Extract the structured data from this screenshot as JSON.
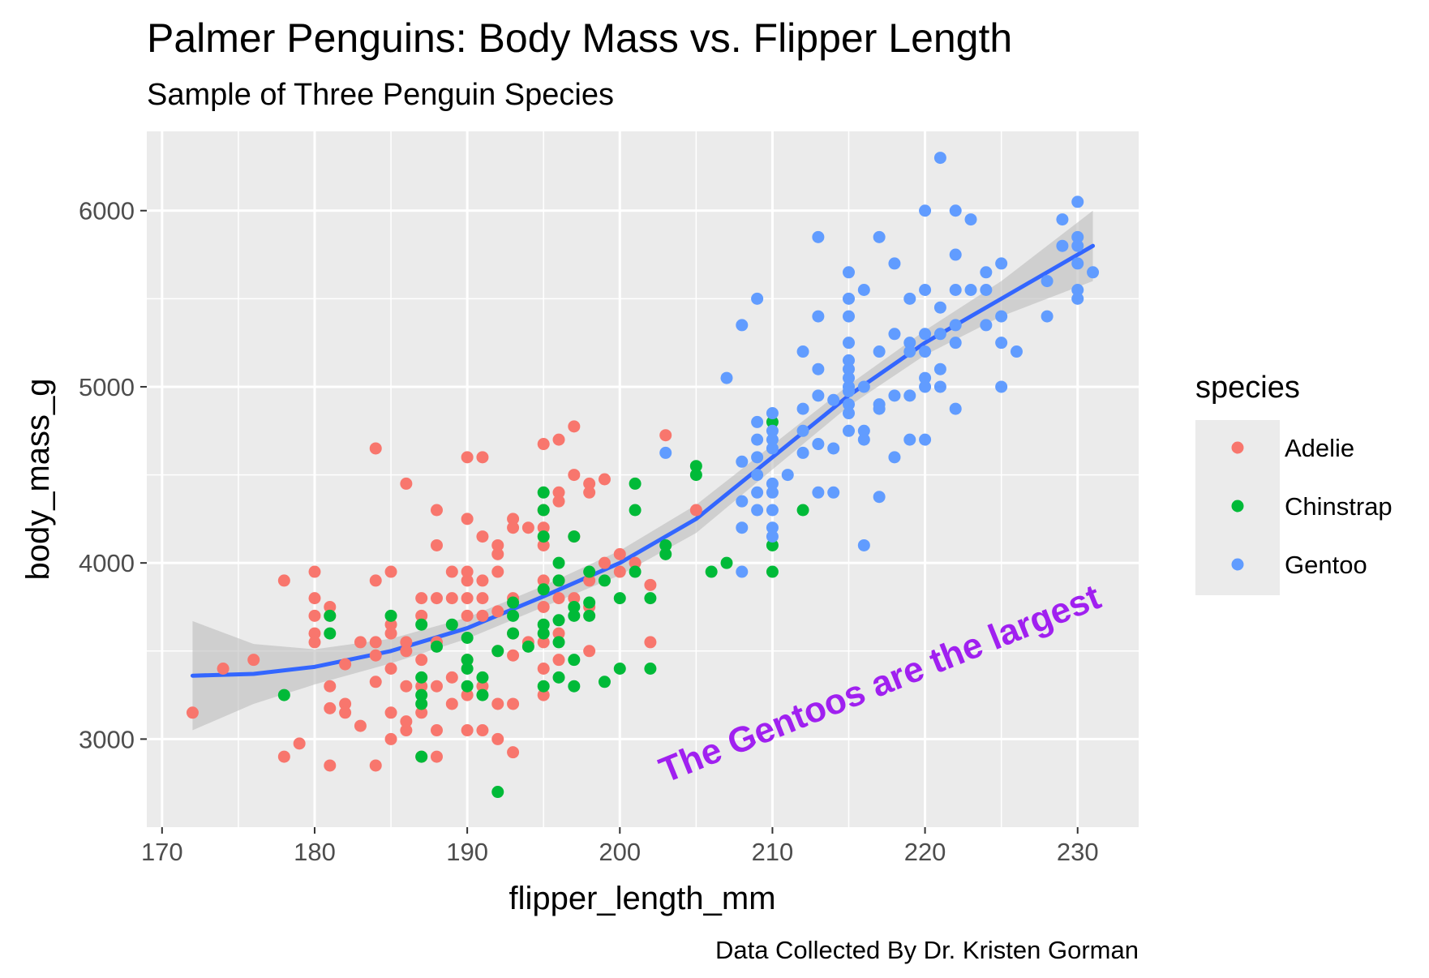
{
  "chart_data": {
    "type": "scatter",
    "title": "Palmer Penguins: Body Mass vs. Flipper Length",
    "subtitle": "Sample of Three Penguin Species",
    "xlabel": "flipper_length_mm",
    "ylabel": "body_mass_g",
    "caption": "Data Collected By Dr. Kristen Gorman",
    "annotation": {
      "text": "The Gentoos are the largest",
      "x": 203,
      "y": 2750,
      "angle_deg": -22,
      "color": "#a020f0"
    },
    "xlim": [
      169,
      234
    ],
    "ylim": [
      2500,
      6450
    ],
    "x_ticks": [
      170,
      180,
      190,
      200,
      210,
      220,
      230
    ],
    "y_ticks": [
      3000,
      4000,
      5000,
      6000
    ],
    "grid": true,
    "panel_background": "#ebebeb",
    "legend": {
      "title": "species",
      "position": "right",
      "entries": [
        "Adelie",
        "Chinstrap",
        "Gentoo"
      ]
    },
    "smooth": {
      "color": "#3366ff",
      "band_color": "#bdbdbd",
      "points": [
        {
          "x": 172,
          "y": 3360,
          "lo": 3050,
          "hi": 3670
        },
        {
          "x": 176,
          "y": 3370,
          "lo": 3200,
          "hi": 3540
        },
        {
          "x": 180,
          "y": 3410,
          "lo": 3310,
          "hi": 3510
        },
        {
          "x": 185,
          "y": 3500,
          "lo": 3430,
          "hi": 3570
        },
        {
          "x": 190,
          "y": 3630,
          "lo": 3570,
          "hi": 3690
        },
        {
          "x": 195,
          "y": 3810,
          "lo": 3750,
          "hi": 3870
        },
        {
          "x": 200,
          "y": 4000,
          "lo": 3930,
          "hi": 4070
        },
        {
          "x": 205,
          "y": 4250,
          "lo": 4170,
          "hi": 4330
        },
        {
          "x": 210,
          "y": 4600,
          "lo": 4530,
          "hi": 4670
        },
        {
          "x": 215,
          "y": 4950,
          "lo": 4890,
          "hi": 5010
        },
        {
          "x": 220,
          "y": 5250,
          "lo": 5180,
          "hi": 5320
        },
        {
          "x": 225,
          "y": 5500,
          "lo": 5400,
          "hi": 5600
        },
        {
          "x": 231,
          "y": 5800,
          "lo": 5600,
          "hi": 6000
        }
      ]
    },
    "series": [
      {
        "name": "Adelie",
        "color": "#f8766d",
        "points": [
          [
            172,
            3150
          ],
          [
            174,
            3400
          ],
          [
            176,
            3450
          ],
          [
            178,
            3900
          ],
          [
            178,
            2900
          ],
          [
            179,
            2975
          ],
          [
            180,
            3950
          ],
          [
            180,
            3800
          ],
          [
            180,
            3700
          ],
          [
            180,
            3600
          ],
          [
            180,
            3550
          ],
          [
            181,
            3750
          ],
          [
            181,
            3700
          ],
          [
            181,
            3300
          ],
          [
            181,
            3175
          ],
          [
            181,
            2850
          ],
          [
            182,
            3425
          ],
          [
            182,
            3200
          ],
          [
            182,
            3150
          ],
          [
            183,
            3550
          ],
          [
            183,
            3075
          ],
          [
            184,
            4650
          ],
          [
            184,
            3900
          ],
          [
            184,
            3550
          ],
          [
            184,
            3475
          ],
          [
            184,
            3325
          ],
          [
            184,
            2850
          ],
          [
            185,
            3950
          ],
          [
            185,
            3650
          ],
          [
            185,
            3600
          ],
          [
            185,
            3400
          ],
          [
            185,
            3150
          ],
          [
            185,
            3000
          ],
          [
            186,
            4450
          ],
          [
            186,
            3550
          ],
          [
            186,
            3500
          ],
          [
            186,
            3300
          ],
          [
            186,
            3100
          ],
          [
            186,
            3050
          ],
          [
            187,
            3800
          ],
          [
            187,
            3700
          ],
          [
            187,
            3450
          ],
          [
            187,
            3300
          ],
          [
            187,
            3150
          ],
          [
            187,
            2900
          ],
          [
            188,
            4300
          ],
          [
            188,
            4100
          ],
          [
            188,
            3800
          ],
          [
            188,
            3550
          ],
          [
            188,
            3300
          ],
          [
            188,
            3050
          ],
          [
            188,
            2900
          ],
          [
            189,
            3950
          ],
          [
            189,
            3800
          ],
          [
            189,
            3350
          ],
          [
            189,
            3200
          ],
          [
            190,
            4600
          ],
          [
            190,
            4250
          ],
          [
            190,
            3950
          ],
          [
            190,
            3900
          ],
          [
            190,
            3800
          ],
          [
            190,
            3700
          ],
          [
            190,
            3450
          ],
          [
            190,
            3250
          ],
          [
            190,
            3050
          ],
          [
            191,
            4600
          ],
          [
            191,
            4150
          ],
          [
            191,
            3900
          ],
          [
            191,
            3800
          ],
          [
            191,
            3700
          ],
          [
            191,
            3300
          ],
          [
            191,
            3050
          ],
          [
            192,
            4100
          ],
          [
            192,
            4050
          ],
          [
            192,
            3950
          ],
          [
            192,
            3725
          ],
          [
            192,
            3500
          ],
          [
            192,
            3200
          ],
          [
            192,
            3000
          ],
          [
            193,
            4250
          ],
          [
            193,
            4200
          ],
          [
            193,
            3800
          ],
          [
            193,
            3600
          ],
          [
            193,
            3475
          ],
          [
            193,
            3200
          ],
          [
            193,
            2925
          ],
          [
            194,
            4200
          ],
          [
            194,
            3550
          ],
          [
            195,
            4675
          ],
          [
            195,
            4300
          ],
          [
            195,
            4200
          ],
          [
            195,
            4100
          ],
          [
            195,
            3900
          ],
          [
            195,
            3750
          ],
          [
            195,
            3550
          ],
          [
            195,
            3400
          ],
          [
            195,
            3250
          ],
          [
            196,
            4700
          ],
          [
            196,
            4400
          ],
          [
            196,
            4350
          ],
          [
            196,
            3900
          ],
          [
            196,
            3800
          ],
          [
            196,
            3600
          ],
          [
            196,
            3450
          ],
          [
            197,
            4775
          ],
          [
            197,
            4500
          ],
          [
            197,
            4150
          ],
          [
            197,
            3800
          ],
          [
            198,
            4450
          ],
          [
            198,
            4400
          ],
          [
            198,
            3900
          ],
          [
            198,
            3750
          ],
          [
            198,
            3500
          ],
          [
            199,
            4475
          ],
          [
            199,
            4000
          ],
          [
            200,
            4050
          ],
          [
            200,
            3950
          ],
          [
            201,
            4000
          ],
          [
            202,
            3875
          ],
          [
            202,
            3550
          ],
          [
            203,
            4725
          ],
          [
            205,
            4300
          ]
        ]
      },
      {
        "name": "Chinstrap",
        "color": "#00ba38",
        "points": [
          [
            178,
            3250
          ],
          [
            181,
            3700
          ],
          [
            181,
            3600
          ],
          [
            185,
            3700
          ],
          [
            187,
            3650
          ],
          [
            187,
            3350
          ],
          [
            187,
            3250
          ],
          [
            187,
            3200
          ],
          [
            187,
            2900
          ],
          [
            188,
            3525
          ],
          [
            189,
            3650
          ],
          [
            190,
            3575
          ],
          [
            190,
            3450
          ],
          [
            190,
            3400
          ],
          [
            190,
            3300
          ],
          [
            191,
            3350
          ],
          [
            191,
            3250
          ],
          [
            192,
            3500
          ],
          [
            192,
            2700
          ],
          [
            193,
            3775
          ],
          [
            193,
            3700
          ],
          [
            193,
            3600
          ],
          [
            194,
            3525
          ],
          [
            195,
            4400
          ],
          [
            195,
            4300
          ],
          [
            195,
            4150
          ],
          [
            195,
            3850
          ],
          [
            195,
            3650
          ],
          [
            195,
            3600
          ],
          [
            195,
            3300
          ],
          [
            196,
            4000
          ],
          [
            196,
            3900
          ],
          [
            196,
            3675
          ],
          [
            196,
            3550
          ],
          [
            196,
            3350
          ],
          [
            197,
            4150
          ],
          [
            197,
            3750
          ],
          [
            197,
            3700
          ],
          [
            197,
            3450
          ],
          [
            197,
            3300
          ],
          [
            198,
            3950
          ],
          [
            198,
            3775
          ],
          [
            198,
            3700
          ],
          [
            199,
            3900
          ],
          [
            199,
            3325
          ],
          [
            200,
            3800
          ],
          [
            200,
            3400
          ],
          [
            201,
            4450
          ],
          [
            201,
            4300
          ],
          [
            201,
            3950
          ],
          [
            202,
            3800
          ],
          [
            202,
            3400
          ],
          [
            203,
            4100
          ],
          [
            203,
            4050
          ],
          [
            205,
            4550
          ],
          [
            205,
            4500
          ],
          [
            206,
            3950
          ],
          [
            207,
            4000
          ],
          [
            210,
            4800
          ],
          [
            210,
            4100
          ],
          [
            210,
            3950
          ],
          [
            212,
            4300
          ]
        ]
      },
      {
        "name": "Gentoo",
        "color": "#619cff",
        "points": [
          [
            203,
            4625
          ],
          [
            207,
            5050
          ],
          [
            208,
            5350
          ],
          [
            208,
            4575
          ],
          [
            208,
            4350
          ],
          [
            208,
            4200
          ],
          [
            208,
            3950
          ],
          [
            209,
            5500
          ],
          [
            209,
            4800
          ],
          [
            209,
            4700
          ],
          [
            209,
            4600
          ],
          [
            209,
            4500
          ],
          [
            209,
            4400
          ],
          [
            209,
            4300
          ],
          [
            210,
            4850
          ],
          [
            210,
            4750
          ],
          [
            210,
            4700
          ],
          [
            210,
            4650
          ],
          [
            210,
            4450
          ],
          [
            210,
            4400
          ],
          [
            210,
            4300
          ],
          [
            210,
            4200
          ],
          [
            210,
            4150
          ],
          [
            211,
            4500
          ],
          [
            212,
            5200
          ],
          [
            212,
            4875
          ],
          [
            212,
            4750
          ],
          [
            212,
            4625
          ],
          [
            213,
            5850
          ],
          [
            213,
            5400
          ],
          [
            213,
            5100
          ],
          [
            213,
            4950
          ],
          [
            213,
            4675
          ],
          [
            213,
            4400
          ],
          [
            214,
            4925
          ],
          [
            214,
            4650
          ],
          [
            214,
            4400
          ],
          [
            215,
            5650
          ],
          [
            215,
            5500
          ],
          [
            215,
            5400
          ],
          [
            215,
            5250
          ],
          [
            215,
            5150
          ],
          [
            215,
            5100
          ],
          [
            215,
            5050
          ],
          [
            215,
            5000
          ],
          [
            215,
            4975
          ],
          [
            215,
            4900
          ],
          [
            215,
            4850
          ],
          [
            215,
            4750
          ],
          [
            216,
            5550
          ],
          [
            216,
            5000
          ],
          [
            216,
            4750
          ],
          [
            216,
            4700
          ],
          [
            216,
            4100
          ],
          [
            217,
            5850
          ],
          [
            217,
            5200
          ],
          [
            217,
            4900
          ],
          [
            217,
            4875
          ],
          [
            217,
            4375
          ],
          [
            218,
            5700
          ],
          [
            218,
            5300
          ],
          [
            218,
            4950
          ],
          [
            218,
            4600
          ],
          [
            219,
            5500
          ],
          [
            219,
            5250
          ],
          [
            219,
            5200
          ],
          [
            219,
            4950
          ],
          [
            219,
            4700
          ],
          [
            220,
            6000
          ],
          [
            220,
            5550
          ],
          [
            220,
            5300
          ],
          [
            220,
            5200
          ],
          [
            220,
            5050
          ],
          [
            220,
            5000
          ],
          [
            220,
            4700
          ],
          [
            221,
            6300
          ],
          [
            221,
            5450
          ],
          [
            221,
            5300
          ],
          [
            221,
            5100
          ],
          [
            221,
            5000
          ],
          [
            222,
            6000
          ],
          [
            222,
            5750
          ],
          [
            222,
            5550
          ],
          [
            222,
            5350
          ],
          [
            222,
            5250
          ],
          [
            222,
            4875
          ],
          [
            223,
            5950
          ],
          [
            223,
            5550
          ],
          [
            224,
            5650
          ],
          [
            224,
            5550
          ],
          [
            224,
            5350
          ],
          [
            225,
            5700
          ],
          [
            225,
            5400
          ],
          [
            225,
            5250
          ],
          [
            225,
            5000
          ],
          [
            226,
            5200
          ],
          [
            228,
            5600
          ],
          [
            228,
            5400
          ],
          [
            229,
            5950
          ],
          [
            229,
            5800
          ],
          [
            230,
            6050
          ],
          [
            230,
            5850
          ],
          [
            230,
            5800
          ],
          [
            230,
            5700
          ],
          [
            230,
            5550
          ],
          [
            230,
            5500
          ],
          [
            231,
            5650
          ]
        ]
      }
    ]
  }
}
